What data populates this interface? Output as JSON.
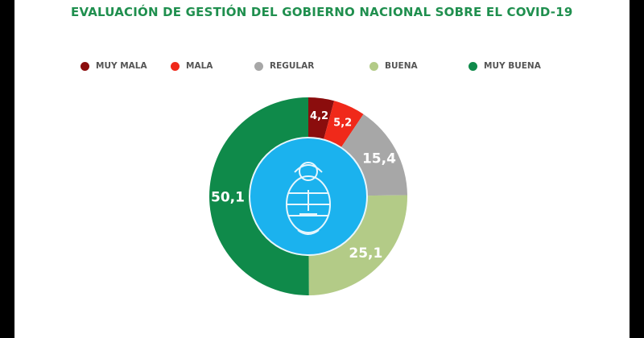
{
  "chart_data": {
    "type": "pie",
    "title": "EVALUACIÓN DE GESTIÓN DEL GOBIERNO NACIONAL SOBRE EL COVID-19",
    "legend_position": "top",
    "series": [
      {
        "name": "MUY MALA",
        "value": 4.2,
        "label": "4,2",
        "color": "#8b0d0d"
      },
      {
        "name": "MALA",
        "value": 5.2,
        "label": "5,2",
        "color": "#f0291a"
      },
      {
        "name": "REGULAR",
        "value": 15.4,
        "label": "15,4",
        "color": "#a7a7a7"
      },
      {
        "name": "BUENA",
        "value": 25.1,
        "label": "25,1",
        "color": "#b3cb87"
      },
      {
        "name": "MUY BUENA",
        "value": 50.1,
        "label": "50,1",
        "color": "#0f8a4a"
      }
    ],
    "center_color": "#1bb2ee"
  }
}
